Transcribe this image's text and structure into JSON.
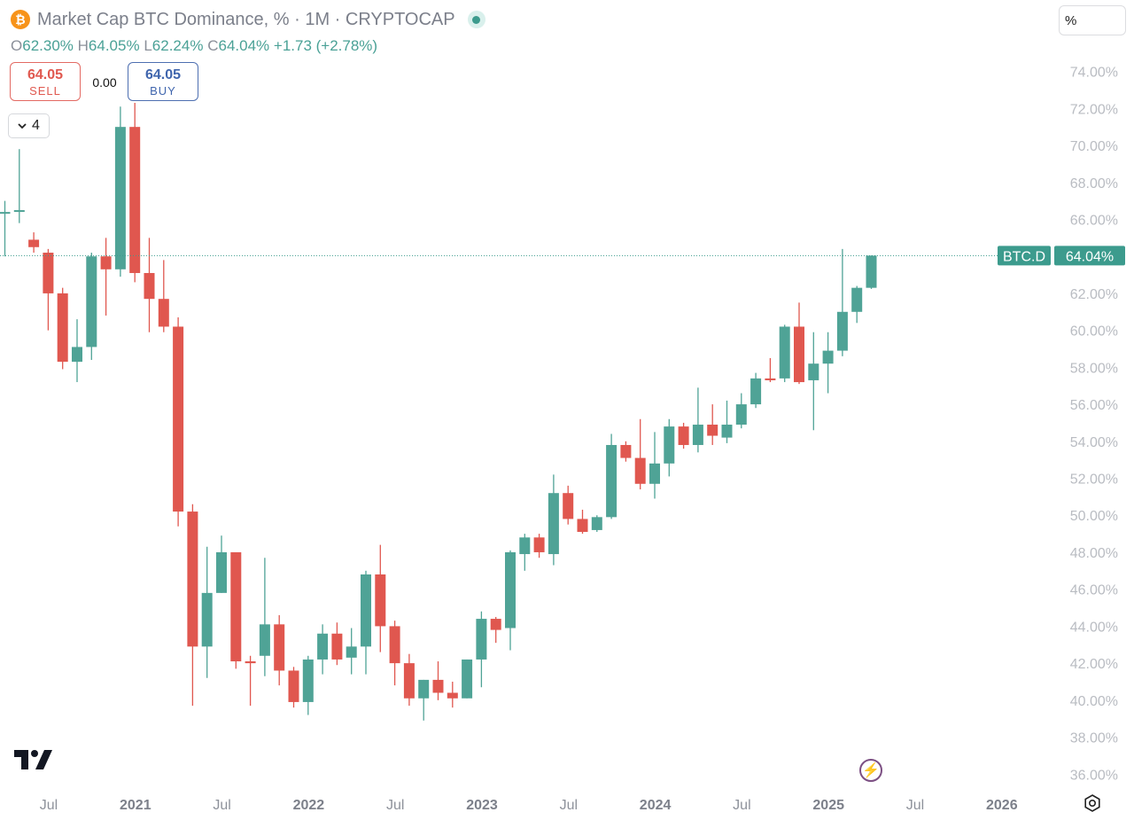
{
  "header": {
    "coin_symbol": "₿",
    "title": "Market Cap BTC Dominance, % · 1M · CRYPTOCAP",
    "ohlc": {
      "o_label": "O",
      "o": "62.30%",
      "h_label": "H",
      "h": "64.05%",
      "l_label": "L",
      "l": "62.24%",
      "c_label": "C",
      "c": "64.04%",
      "change": "+1.73 (+2.78%)"
    }
  },
  "trade": {
    "sell_price": "64.05",
    "sell_label": "SELL",
    "spread": "0.00",
    "buy_price": "64.05",
    "buy_label": "BUY"
  },
  "indicators": {
    "count": "4"
  },
  "scale_mode": "%",
  "price_tag": {
    "symbol": "BTC.D",
    "value": "64.04%"
  },
  "colors": {
    "up": "#4fa396",
    "down": "#e0574f",
    "tag_bg": "#3c9b8d",
    "grid_line": "#3c9b8d"
  },
  "icons": {
    "coin": "bitcoin-icon",
    "live": "live-status-icon",
    "chevron": "chevron-down-icon",
    "logo": "tradingview-logo",
    "bolt": "lightning-icon",
    "settings": "settings-icon"
  },
  "chart_data": {
    "type": "candlestick",
    "interval": "1M",
    "y_axis": {
      "ticks": [
        "74.00%",
        "72.00%",
        "70.00%",
        "68.00%",
        "66.00%",
        "64.00%",
        "62.00%",
        "60.00%",
        "58.00%",
        "56.00%",
        "54.00%",
        "52.00%",
        "50.00%",
        "48.00%",
        "46.00%",
        "44.00%",
        "42.00%",
        "40.00%",
        "38.00%",
        "36.00%"
      ],
      "ylim": [
        36,
        74
      ]
    },
    "x_axis": {
      "ticks": [
        {
          "label": "Jul",
          "year": false
        },
        {
          "label": "2021",
          "year": true
        },
        {
          "label": "Jul",
          "year": false
        },
        {
          "label": "2022",
          "year": true
        },
        {
          "label": "Jul",
          "year": false
        },
        {
          "label": "2023",
          "year": true
        },
        {
          "label": "Jul",
          "year": false
        },
        {
          "label": "2024",
          "year": true
        },
        {
          "label": "Jul",
          "year": false
        },
        {
          "label": "2025",
          "year": true
        },
        {
          "label": "Jul",
          "year": false
        },
        {
          "label": "2026",
          "year": true
        }
      ]
    },
    "last_value": 64.04,
    "candles": [
      {
        "o": 66.4,
        "h": 67.0,
        "l": 64.0,
        "c": 66.4
      },
      {
        "o": 66.5,
        "h": 69.8,
        "l": 65.8,
        "c": 66.5
      },
      {
        "o": 64.9,
        "h": 65.3,
        "l": 64.2,
        "c": 64.5
      },
      {
        "o": 64.2,
        "h": 64.4,
        "l": 60.0,
        "c": 62.0
      },
      {
        "o": 62.0,
        "h": 62.3,
        "l": 57.9,
        "c": 58.3
      },
      {
        "o": 58.3,
        "h": 60.6,
        "l": 57.2,
        "c": 59.1
      },
      {
        "o": 59.1,
        "h": 64.2,
        "l": 58.4,
        "c": 64.0
      },
      {
        "o": 64.0,
        "h": 65.0,
        "l": 60.8,
        "c": 63.3
      },
      {
        "o": 63.3,
        "h": 72.1,
        "l": 62.9,
        "c": 71.0
      },
      {
        "o": 71.0,
        "h": 72.3,
        "l": 62.6,
        "c": 63.1
      },
      {
        "o": 63.1,
        "h": 65.0,
        "l": 59.9,
        "c": 61.7
      },
      {
        "o": 61.7,
        "h": 63.8,
        "l": 59.9,
        "c": 60.2
      },
      {
        "o": 60.2,
        "h": 60.7,
        "l": 49.4,
        "c": 50.2
      },
      {
        "o": 50.2,
        "h": 50.6,
        "l": 39.7,
        "c": 42.9
      },
      {
        "o": 42.9,
        "h": 48.3,
        "l": 41.2,
        "c": 45.8
      },
      {
        "o": 45.8,
        "h": 48.9,
        "l": 45.8,
        "c": 48.0
      },
      {
        "o": 48.0,
        "h": 48.0,
        "l": 41.7,
        "c": 42.1
      },
      {
        "o": 42.1,
        "h": 42.4,
        "l": 39.7,
        "c": 42.0
      },
      {
        "o": 42.4,
        "h": 47.7,
        "l": 41.3,
        "c": 44.1
      },
      {
        "o": 44.1,
        "h": 44.6,
        "l": 40.8,
        "c": 41.6
      },
      {
        "o": 41.6,
        "h": 41.8,
        "l": 39.6,
        "c": 39.9
      },
      {
        "o": 39.9,
        "h": 42.4,
        "l": 39.2,
        "c": 42.2
      },
      {
        "o": 42.2,
        "h": 44.1,
        "l": 41.4,
        "c": 43.6
      },
      {
        "o": 43.6,
        "h": 44.2,
        "l": 41.9,
        "c": 42.2
      },
      {
        "o": 42.3,
        "h": 43.9,
        "l": 41.4,
        "c": 42.9
      },
      {
        "o": 42.9,
        "h": 47.0,
        "l": 41.4,
        "c": 46.8
      },
      {
        "o": 46.8,
        "h": 48.4,
        "l": 42.6,
        "c": 44.0
      },
      {
        "o": 44.0,
        "h": 44.3,
        "l": 40.8,
        "c": 42.0
      },
      {
        "o": 42.0,
        "h": 42.5,
        "l": 39.7,
        "c": 40.1
      },
      {
        "o": 40.1,
        "h": 41.1,
        "l": 38.9,
        "c": 41.1
      },
      {
        "o": 41.1,
        "h": 42.1,
        "l": 40.0,
        "c": 40.4
      },
      {
        "o": 40.4,
        "h": 41.0,
        "l": 39.6,
        "c": 40.1
      },
      {
        "o": 40.1,
        "h": 42.2,
        "l": 40.1,
        "c": 42.2
      },
      {
        "o": 42.2,
        "h": 44.8,
        "l": 40.7,
        "c": 44.4
      },
      {
        "o": 44.4,
        "h": 44.5,
        "l": 43.1,
        "c": 43.8
      },
      {
        "o": 43.9,
        "h": 48.1,
        "l": 42.7,
        "c": 48.0
      },
      {
        "o": 47.9,
        "h": 49.0,
        "l": 47.0,
        "c": 48.8
      },
      {
        "o": 48.8,
        "h": 49.0,
        "l": 47.7,
        "c": 48.0
      },
      {
        "o": 47.9,
        "h": 52.2,
        "l": 47.3,
        "c": 51.2
      },
      {
        "o": 51.2,
        "h": 51.6,
        "l": 49.5,
        "c": 49.8
      },
      {
        "o": 49.8,
        "h": 50.3,
        "l": 49.0,
        "c": 49.1
      },
      {
        "o": 49.2,
        "h": 50.0,
        "l": 49.1,
        "c": 49.9
      },
      {
        "o": 49.9,
        "h": 54.4,
        "l": 49.8,
        "c": 53.8
      },
      {
        "o": 53.8,
        "h": 54.0,
        "l": 52.9,
        "c": 53.1
      },
      {
        "o": 53.1,
        "h": 55.2,
        "l": 51.4,
        "c": 51.7
      },
      {
        "o": 51.7,
        "h": 54.5,
        "l": 50.9,
        "c": 52.8
      },
      {
        "o": 52.8,
        "h": 55.2,
        "l": 52.1,
        "c": 54.8
      },
      {
        "o": 54.8,
        "h": 55.0,
        "l": 53.6,
        "c": 53.8
      },
      {
        "o": 53.8,
        "h": 56.9,
        "l": 53.4,
        "c": 54.9
      },
      {
        "o": 54.9,
        "h": 56.0,
        "l": 53.8,
        "c": 54.3
      },
      {
        "o": 54.2,
        "h": 56.2,
        "l": 53.9,
        "c": 54.9
      },
      {
        "o": 54.9,
        "h": 56.6,
        "l": 54.7,
        "c": 56.0
      },
      {
        "o": 56.0,
        "h": 57.7,
        "l": 55.8,
        "c": 57.4
      },
      {
        "o": 57.4,
        "h": 58.5,
        "l": 57.2,
        "c": 57.3
      },
      {
        "o": 57.4,
        "h": 60.3,
        "l": 57.2,
        "c": 60.2
      },
      {
        "o": 60.2,
        "h": 61.5,
        "l": 57.1,
        "c": 57.2
      },
      {
        "o": 57.3,
        "h": 59.9,
        "l": 54.6,
        "c": 58.2
      },
      {
        "o": 58.2,
        "h": 59.9,
        "l": 56.6,
        "c": 58.9
      },
      {
        "o": 58.9,
        "h": 64.4,
        "l": 58.6,
        "c": 61.0
      },
      {
        "o": 61.0,
        "h": 62.4,
        "l": 60.4,
        "c": 62.3
      },
      {
        "o": 62.3,
        "h": 64.05,
        "l": 62.24,
        "c": 64.04
      }
    ]
  }
}
